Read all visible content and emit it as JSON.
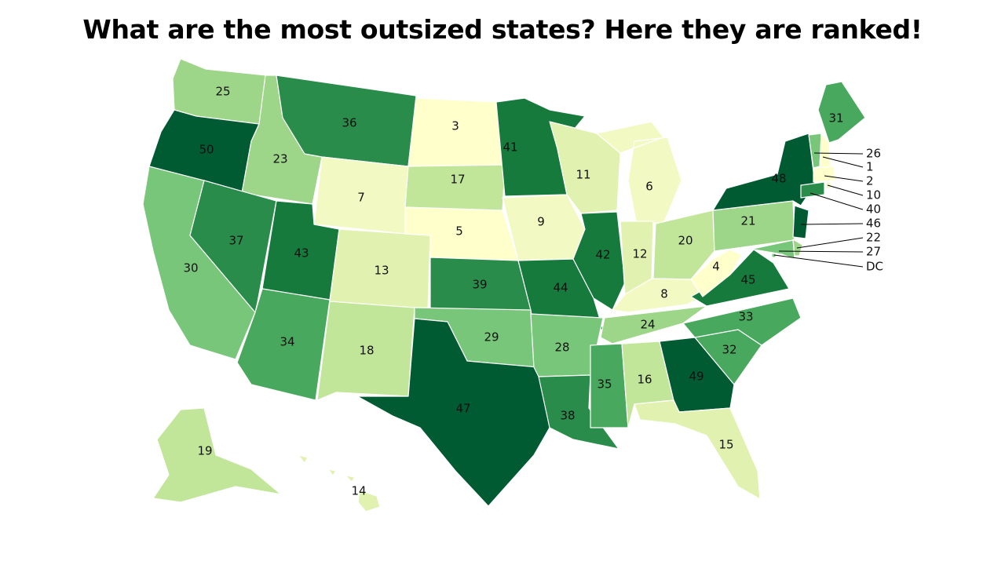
{
  "title": "What are the most outsized states? Here they are ranked!",
  "colors": {
    "r1_5": "#ffffcc",
    "r6_10": "#f3f9c3",
    "r11_15": "#e1f2b0",
    "r16_20": "#c2e699",
    "r21_25": "#9dd688",
    "r26_30": "#78c679",
    "r31_35": "#48a85d",
    "r36_40": "#2a8c4a",
    "r41_45": "#157a3c",
    "r46_50": "#005a32"
  },
  "states": [
    {
      "code": "WA",
      "rank": "25"
    },
    {
      "code": "OR",
      "rank": "50"
    },
    {
      "code": "CA",
      "rank": "30"
    },
    {
      "code": "ID",
      "rank": "23"
    },
    {
      "code": "NV",
      "rank": "37"
    },
    {
      "code": "MT",
      "rank": "36"
    },
    {
      "code": "WY",
      "rank": "7"
    },
    {
      "code": "UT",
      "rank": "43"
    },
    {
      "code": "AZ",
      "rank": "34"
    },
    {
      "code": "CO",
      "rank": "13"
    },
    {
      "code": "NM",
      "rank": "18"
    },
    {
      "code": "ND",
      "rank": "3"
    },
    {
      "code": "SD",
      "rank": "17"
    },
    {
      "code": "NE",
      "rank": "5"
    },
    {
      "code": "KS",
      "rank": "39"
    },
    {
      "code": "OK",
      "rank": "29"
    },
    {
      "code": "TX",
      "rank": "47"
    },
    {
      "code": "MN",
      "rank": "41"
    },
    {
      "code": "IA",
      "rank": "9"
    },
    {
      "code": "MO",
      "rank": "44"
    },
    {
      "code": "AR",
      "rank": "28"
    },
    {
      "code": "LA",
      "rank": "38"
    },
    {
      "code": "WI",
      "rank": "11"
    },
    {
      "code": "IL",
      "rank": "42"
    },
    {
      "code": "MI",
      "rank": "6"
    },
    {
      "code": "IN",
      "rank": "12"
    },
    {
      "code": "OH",
      "rank": "20"
    },
    {
      "code": "KY",
      "rank": "8"
    },
    {
      "code": "TN",
      "rank": "24"
    },
    {
      "code": "MS",
      "rank": "35"
    },
    {
      "code": "AL",
      "rank": "16"
    },
    {
      "code": "GA",
      "rank": "49"
    },
    {
      "code": "FL",
      "rank": "15"
    },
    {
      "code": "SC",
      "rank": "32"
    },
    {
      "code": "NC",
      "rank": "33"
    },
    {
      "code": "VA",
      "rank": "45"
    },
    {
      "code": "WV",
      "rank": "4"
    },
    {
      "code": "PA",
      "rank": "21"
    },
    {
      "code": "NY",
      "rank": "48"
    },
    {
      "code": "ME",
      "rank": "31"
    },
    {
      "code": "AK",
      "rank": "19"
    },
    {
      "code": "HI",
      "rank": "14"
    }
  ],
  "callouts": [
    {
      "code": "VT",
      "label": "26"
    },
    {
      "code": "NH",
      "label": "1"
    },
    {
      "code": "MA",
      "label": "2"
    },
    {
      "code": "RI",
      "label": "10"
    },
    {
      "code": "CT",
      "label": "40"
    },
    {
      "code": "NJ",
      "label": "46"
    },
    {
      "code": "DE",
      "label": "22"
    },
    {
      "code": "MD",
      "label": "27"
    },
    {
      "code": "DC",
      "label": "DC"
    }
  ]
}
